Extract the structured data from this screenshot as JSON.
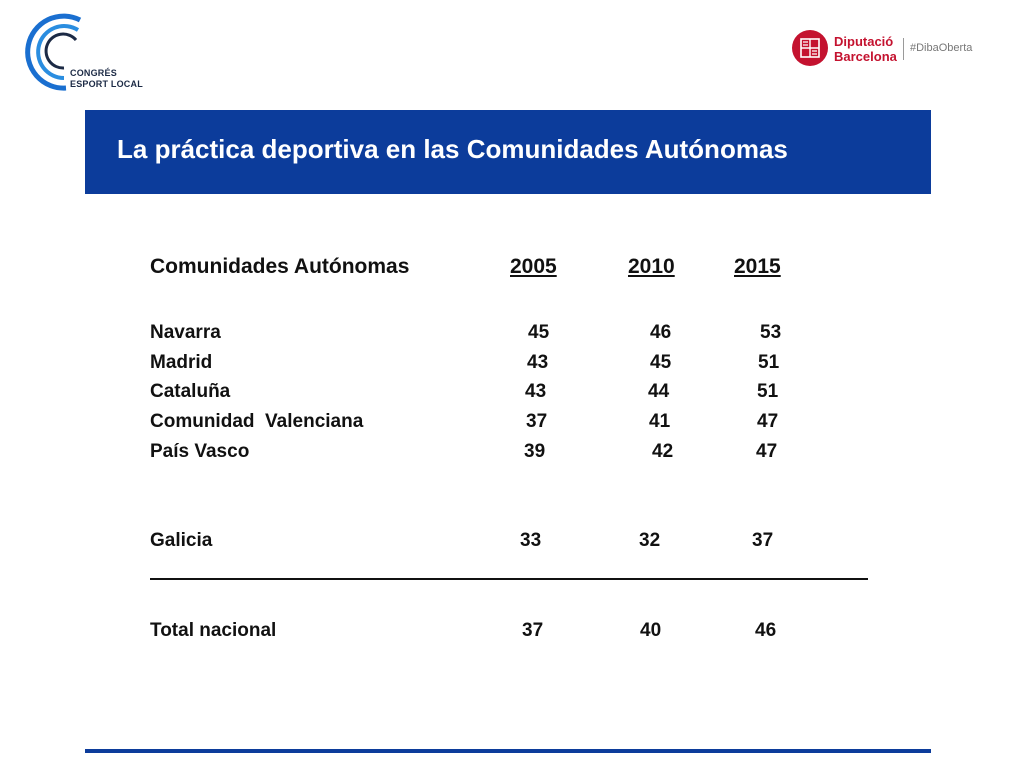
{
  "logo_left": {
    "line1": "CONGRÉS",
    "line2": "ESPORT LOCAL"
  },
  "logo_right": {
    "brand_line1": "Diputació",
    "brand_line2": "Barcelona",
    "hashtag": "#DibaOberta"
  },
  "title": "La práctica deportiva en las Comunidades Autónomas",
  "table": {
    "headers": [
      "Comunidades Autónomas",
      "2005",
      "2010",
      "2015"
    ],
    "rows": [
      [
        "Navarra",
        "45",
        "46",
        "53"
      ],
      [
        "Madrid",
        "43",
        "45",
        "51"
      ],
      [
        "Cataluña",
        "43",
        "44",
        "51"
      ],
      [
        "Comunidad  Valenciana",
        "37",
        "41",
        "47"
      ],
      [
        "País Vasco",
        "39",
        "42",
        "47"
      ]
    ],
    "galicia": [
      "Galicia",
      "33",
      "32",
      "37"
    ],
    "total": [
      "Total nacional",
      "37",
      "40",
      "46"
    ]
  },
  "colors": {
    "band": "#0c3c9b",
    "brand_red": "#c4122f",
    "logo_blue": "#1a6fd0"
  }
}
